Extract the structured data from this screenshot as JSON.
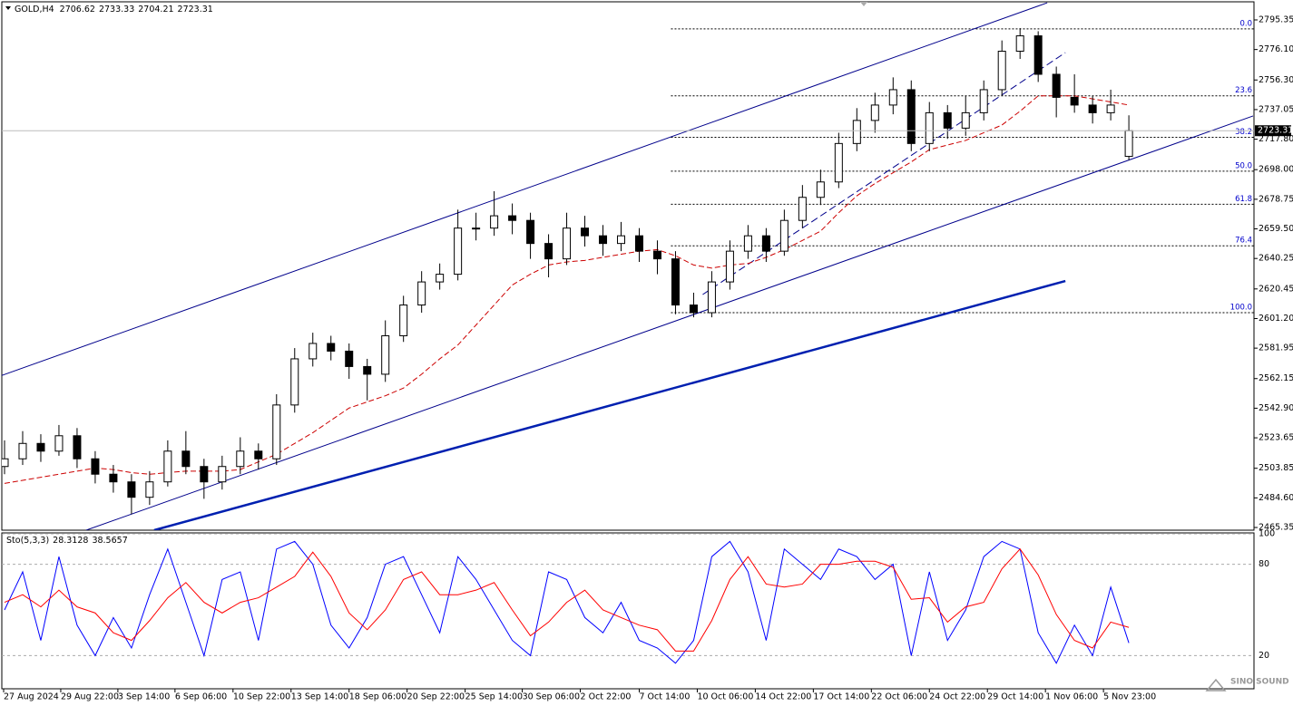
{
  "chart_data": [
    {
      "type": "candlestick",
      "symbol": "GOLD,H4",
      "x": [
        0,
        1,
        2,
        3,
        4,
        5,
        6,
        7,
        8,
        9,
        10,
        11,
        12,
        13,
        14,
        15,
        16,
        17,
        18,
        19,
        20,
        21,
        22,
        23,
        24,
        25,
        26,
        27,
        28,
        29,
        30,
        31,
        32,
        33,
        34,
        35,
        36,
        37,
        38,
        39,
        40,
        41,
        42,
        43,
        44,
        45,
        46,
        47,
        48,
        49,
        50,
        51,
        52,
        53,
        54,
        55,
        56,
        57,
        58,
        59,
        60,
        61,
        62
      ],
      "ohlc": [
        [
          2505,
          2522,
          2500,
          2510
        ],
        [
          2510,
          2528,
          2506,
          2520
        ],
        [
          2520,
          2526,
          2508,
          2515
        ],
        [
          2515,
          2532,
          2512,
          2525
        ],
        [
          2525,
          2530,
          2504,
          2510
        ],
        [
          2510,
          2515,
          2494,
          2500
        ],
        [
          2500,
          2506,
          2488,
          2495
        ],
        [
          2495,
          2500,
          2474,
          2485
        ],
        [
          2485,
          2502,
          2480,
          2495
        ],
        [
          2495,
          2522,
          2492,
          2515
        ],
        [
          2515,
          2528,
          2500,
          2505
        ],
        [
          2505,
          2510,
          2484,
          2495
        ],
        [
          2495,
          2512,
          2490,
          2505
        ],
        [
          2505,
          2524,
          2500,
          2515
        ],
        [
          2515,
          2520,
          2503,
          2510
        ],
        [
          2510,
          2552,
          2506,
          2545
        ],
        [
          2545,
          2582,
          2540,
          2575
        ],
        [
          2575,
          2592,
          2570,
          2585
        ],
        [
          2585,
          2590,
          2574,
          2580
        ],
        [
          2580,
          2585,
          2562,
          2570
        ],
        [
          2570,
          2575,
          2548,
          2565
        ],
        [
          2565,
          2600,
          2560,
          2590
        ],
        [
          2590,
          2616,
          2586,
          2610
        ],
        [
          2610,
          2632,
          2605,
          2625
        ],
        [
          2625,
          2637,
          2620,
          2630
        ],
        [
          2630,
          2672,
          2626,
          2660
        ],
        [
          2660,
          2670,
          2652,
          2660
        ],
        [
          2660,
          2684,
          2655,
          2668
        ],
        [
          2668,
          2676,
          2656,
          2665
        ],
        [
          2665,
          2670,
          2640,
          2650
        ],
        [
          2650,
          2656,
          2628,
          2640
        ],
        [
          2640,
          2670,
          2636,
          2660
        ],
        [
          2660,
          2668,
          2648,
          2655
        ],
        [
          2655,
          2662,
          2642,
          2650
        ],
        [
          2650,
          2664,
          2645,
          2655
        ],
        [
          2655,
          2660,
          2638,
          2645
        ],
        [
          2645,
          2652,
          2630,
          2640
        ],
        [
          2640,
          2645,
          2604,
          2610
        ],
        [
          2610,
          2618,
          2602,
          2605
        ],
        [
          2605,
          2632,
          2602,
          2625
        ],
        [
          2625,
          2652,
          2620,
          2645
        ],
        [
          2645,
          2662,
          2640,
          2655
        ],
        [
          2655,
          2660,
          2638,
          2645
        ],
        [
          2645,
          2672,
          2642,
          2665
        ],
        [
          2665,
          2688,
          2660,
          2680
        ],
        [
          2680,
          2698,
          2675,
          2690
        ],
        [
          2690,
          2722,
          2686,
          2715
        ],
        [
          2715,
          2738,
          2710,
          2730
        ],
        [
          2730,
          2748,
          2722,
          2740
        ],
        [
          2740,
          2758,
          2734,
          2750
        ],
        [
          2750,
          2756,
          2710,
          2715
        ],
        [
          2715,
          2742,
          2710,
          2735
        ],
        [
          2735,
          2740,
          2718,
          2725
        ],
        [
          2725,
          2746,
          2720,
          2735
        ],
        [
          2735,
          2756,
          2730,
          2750
        ],
        [
          2750,
          2782,
          2746,
          2775
        ],
        [
          2775,
          2790,
          2770,
          2785
        ],
        [
          2785,
          2788,
          2755,
          2760
        ],
        [
          2760,
          2765,
          2732,
          2745
        ],
        [
          2745,
          2760,
          2735,
          2740
        ],
        [
          2740,
          2746,
          2728,
          2735
        ],
        [
          2735,
          2750,
          2730,
          2740
        ],
        [
          2706.62,
          2733.33,
          2704.21,
          2723.31
        ]
      ],
      "color_up": "#ffffff",
      "color_down": "#000000",
      "moving_average": {
        "color": "#cc0000",
        "dashed": true,
        "values": [
          2494,
          2496,
          2498,
          2500,
          2502,
          2504,
          2503,
          2501,
          2500,
          2501,
          2502,
          2502,
          2502,
          2503,
          2508,
          2513,
          2520,
          2527,
          2535,
          2543,
          2547,
          2551,
          2556,
          2565,
          2575,
          2584,
          2597,
          2610,
          2623,
          2630,
          2636,
          2638,
          2639,
          2641,
          2643,
          2645,
          2646,
          2642,
          2636,
          2634,
          2636,
          2637,
          2641,
          2646,
          2652,
          2658,
          2670,
          2681,
          2689,
          2696,
          2703,
          2711,
          2714,
          2717,
          2722,
          2727,
          2736,
          2746,
          2746,
          2746,
          2744,
          2742,
          2740
        ]
      },
      "fib_start": 36.75,
      "fib_color": "#0000cc",
      "fib_levels": [
        {
          "label": "0.0",
          "price": 2789.5
        },
        {
          "label": "23.6",
          "price": 2746
        },
        {
          "label": "38.2",
          "price": 2719
        },
        {
          "label": "50.0",
          "price": 2697
        },
        {
          "label": "61.8",
          "price": 2675.5
        },
        {
          "label": "76.4",
          "price": 2648.5
        },
        {
          "label": "100.0",
          "price": 2605
        }
      ],
      "trendlines": [
        {
          "points": [
            [
              -0.25,
              2563.8
            ],
            [
              57.5,
              2806.5
            ]
          ],
          "color": "#00008b",
          "width": 1,
          "dashed": false
        },
        {
          "points": [
            [
              4.5,
              2463.6
            ],
            [
              68.85,
              2732.9
            ]
          ],
          "color": "#00008b",
          "width": 1,
          "dashed": false
        },
        {
          "points": [
            [
              8.25,
              2463.6
            ],
            [
              58.5,
              2625.6
            ]
          ],
          "color": "#0020b0",
          "width": 2.5,
          "dashed": false
        },
        {
          "points": [
            [
              38.5,
              2616.8
            ],
            [
              58.5,
              2774.1
            ]
          ],
          "color": "#00008b",
          "width": 1,
          "dashed": true
        }
      ],
      "xlim": [
        -0.15,
        68.9
      ],
      "ylim": [
        2463.6,
        2808.3
      ],
      "yticks": [
        2795.35,
        {
          "value": 2776.1,
          "label": "2776.10"
        },
        {
          "value": 2756.3,
          "label": "2756.30"
        },
        2737.05,
        {
          "value": 2717.8,
          "label": "2717.80"
        },
        {
          "value": 2698,
          "label": "2698.00"
        },
        2678.75,
        {
          "value": 2659.5,
          "label": "2659.50"
        },
        2640.25,
        2620.45,
        {
          "value": 2601.2,
          "label": "2601.20"
        },
        2581.95,
        2562.15,
        {
          "value": 2542.9,
          "label": "2542.90"
        },
        2523.65,
        2503.85,
        {
          "value": 2484.6,
          "label": "2484.60"
        },
        2465.35
      ],
      "xticks": [
        {
          "value": -0.05,
          "label": "27 Aug 2024"
        },
        {
          "value": 3.1,
          "label": "29 Aug 22:00"
        },
        {
          "value": 6.25,
          "label": "3 Sep 14:00"
        },
        {
          "value": 9.4,
          "label": "6 Sep 06:00"
        },
        {
          "value": 12.6,
          "label": "10 Sep 22:00"
        },
        {
          "value": 15.8,
          "label": "13 Sep 14:00"
        },
        {
          "value": 19,
          "label": "18 Sep 06:00"
        },
        {
          "value": 22.2,
          "label": "20 Sep 22:00"
        },
        {
          "value": 25.4,
          "label": "25 Sep 14:00"
        },
        {
          "value": 28.55,
          "label": "30 Sep 06:00"
        },
        {
          "value": 31.75,
          "label": "2 Oct 22:00"
        },
        {
          "value": 35,
          "label": "7 Oct 14:00"
        },
        {
          "value": 38.2,
          "label": "10 Oct 06:00"
        },
        {
          "value": 41.4,
          "label": "14 Oct 22:00"
        },
        {
          "value": 44.6,
          "label": "17 Oct 14:00"
        },
        {
          "value": 47.8,
          "label": "22 Oct 06:00"
        },
        {
          "value": 51,
          "label": "24 Oct 22:00"
        },
        {
          "value": 54.2,
          "label": "29 Oct 14:00"
        },
        {
          "value": 57.4,
          "label": "1 Nov 06:00"
        },
        {
          "value": 60.6,
          "label": "5 Nov 23:00"
        }
      ]
    },
    {
      "type": "stochastic",
      "label": "Sto(5,3,3)",
      "series": [
        {
          "color": "#0000ff",
          "values": [
            50,
            75,
            30,
            85,
            40,
            20,
            45,
            25,
            60,
            90,
            55,
            20,
            70,
            75,
            30,
            90,
            95,
            80,
            40,
            25,
            45,
            80,
            85,
            60,
            35,
            85,
            70,
            50,
            30,
            20,
            75,
            70,
            45,
            35,
            55,
            30,
            25,
            15,
            30,
            85,
            95,
            75,
            30,
            90,
            80,
            70,
            90,
            85,
            70,
            80,
            20,
            75,
            30,
            50,
            85,
            95,
            90,
            35,
            15,
            40,
            20,
            65,
            28.3128
          ]
        },
        {
          "color": "#ff0000",
          "values": [
            55,
            60,
            52,
            63,
            52,
            48,
            35,
            30,
            43,
            58,
            68,
            55,
            48,
            55,
            58,
            65,
            72,
            88,
            72,
            48,
            37,
            50,
            70,
            75,
            60,
            60,
            63,
            68,
            50,
            33,
            42,
            55,
            63,
            50,
            45,
            40,
            37,
            23,
            23,
            43,
            70,
            85,
            67,
            65,
            67,
            80,
            80,
            82,
            82,
            78,
            57,
            58,
            42,
            52,
            55,
            77,
            90,
            73,
            47,
            30,
            25,
            42,
            38.5657
          ]
        }
      ],
      "ylim": [
        0,
        100
      ],
      "yticks": [
        100,
        80,
        20
      ]
    }
  ],
  "watermark": "SINO SOUND"
}
